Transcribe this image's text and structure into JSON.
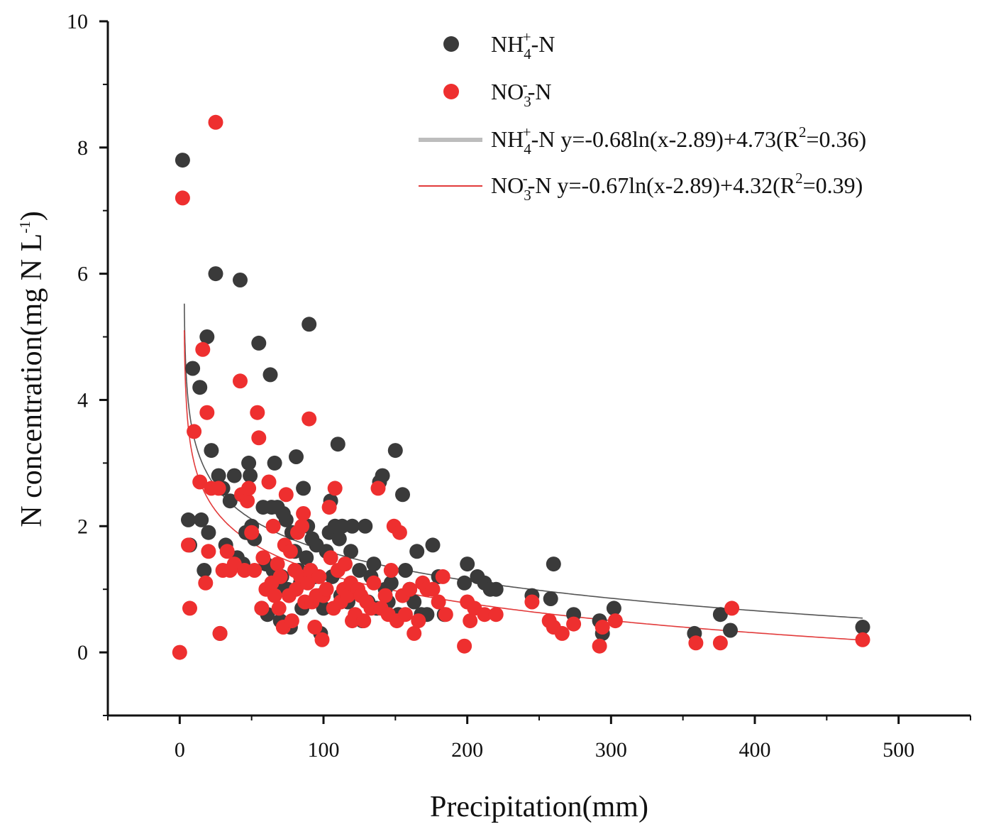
{
  "chart_data": {
    "type": "scatter",
    "title": "",
    "xlabel": "Precipitation(mm)",
    "ylabel": "N concentration(mg N L",
    "ylabel_sup": "-1",
    "ylabel_end": ")",
    "xlim": [
      -50,
      550
    ],
    "ylim": [
      -1,
      10
    ],
    "x_ticks": [
      0,
      100,
      200,
      300,
      400,
      500
    ],
    "y_ticks": [
      0,
      2,
      4,
      6,
      8,
      10
    ],
    "grid": false,
    "legend_position": "top-right",
    "colors": {
      "nh4": "#3a3a3a",
      "no3": "#ee2f2f",
      "nh4_fit": "#555555",
      "no3_fit": "#e23b3b"
    },
    "series": [
      {
        "name": "NH4+-N",
        "legend": {
          "base": "NH",
          "sub": "4",
          "sup": "+",
          "tail": "-N"
        },
        "points": [
          [
            2,
            7.8
          ],
          [
            6,
            2.1
          ],
          [
            7,
            1.7
          ],
          [
            9,
            4.5
          ],
          [
            14,
            4.2
          ],
          [
            15,
            2.1
          ],
          [
            17,
            1.3
          ],
          [
            19,
            5.0
          ],
          [
            20,
            1.9
          ],
          [
            22,
            3.2
          ],
          [
            25,
            6.0
          ],
          [
            27,
            2.8
          ],
          [
            28,
            0.3
          ],
          [
            30,
            2.6
          ],
          [
            32,
            1.7
          ],
          [
            35,
            2.4
          ],
          [
            38,
            2.8
          ],
          [
            40,
            1.5
          ],
          [
            42,
            5.9
          ],
          [
            44,
            1.4
          ],
          [
            46,
            1.9
          ],
          [
            48,
            3.0
          ],
          [
            49,
            2.8
          ],
          [
            50,
            2.0
          ],
          [
            52,
            1.8
          ],
          [
            55,
            4.9
          ],
          [
            57,
            0.7
          ],
          [
            58,
            2.3
          ],
          [
            60,
            1.4
          ],
          [
            61,
            0.6
          ],
          [
            63,
            4.4
          ],
          [
            64,
            2.3
          ],
          [
            65,
            1.3
          ],
          [
            66,
            3.0
          ],
          [
            68,
            2.3
          ],
          [
            69,
            1.1
          ],
          [
            70,
            0.5
          ],
          [
            71,
            1.2
          ],
          [
            72,
            2.2
          ],
          [
            74,
            2.1
          ],
          [
            75,
            1.0
          ],
          [
            77,
            0.4
          ],
          [
            78,
            1.9
          ],
          [
            80,
            1.6
          ],
          [
            81,
            3.1
          ],
          [
            83,
            1.3
          ],
          [
            84,
            1.1
          ],
          [
            85,
            0.7
          ],
          [
            86,
            2.6
          ],
          [
            88,
            1.5
          ],
          [
            89,
            2.0
          ],
          [
            90,
            5.2
          ],
          [
            91,
            1.3
          ],
          [
            92,
            1.8
          ],
          [
            94,
            1.2
          ],
          [
            95,
            1.7
          ],
          [
            97,
            0.9
          ],
          [
            98,
            0.3
          ],
          [
            100,
            0.7
          ],
          [
            102,
            1.6
          ],
          [
            104,
            1.9
          ],
          [
            105,
            2.4
          ],
          [
            106,
            1.2
          ],
          [
            108,
            2.0
          ],
          [
            110,
            3.3
          ],
          [
            111,
            1.8
          ],
          [
            112,
            0.9
          ],
          [
            113,
            2.0
          ],
          [
            115,
            1.4
          ],
          [
            117,
            0.8
          ],
          [
            119,
            1.6
          ],
          [
            120,
            2.0
          ],
          [
            122,
            1.0
          ],
          [
            125,
            1.3
          ],
          [
            127,
            0.5
          ],
          [
            129,
            2.0
          ],
          [
            131,
            0.8
          ],
          [
            133,
            1.2
          ],
          [
            135,
            1.4
          ],
          [
            137,
            0.7
          ],
          [
            139,
            2.7
          ],
          [
            141,
            2.8
          ],
          [
            143,
            1.0
          ],
          [
            145,
            0.8
          ],
          [
            147,
            1.1
          ],
          [
            150,
            3.2
          ],
          [
            152,
            0.6
          ],
          [
            155,
            2.5
          ],
          [
            157,
            1.3
          ],
          [
            160,
            1.0
          ],
          [
            163,
            0.8
          ],
          [
            165,
            1.6
          ],
          [
            168,
            0.6
          ],
          [
            172,
            0.6
          ],
          [
            176,
            1.7
          ],
          [
            180,
            1.2
          ],
          [
            184,
            0.6
          ],
          [
            198,
            1.1
          ],
          [
            200,
            1.4
          ],
          [
            207,
            1.2
          ],
          [
            212,
            1.1
          ],
          [
            216,
            1.0
          ],
          [
            220,
            1.0
          ],
          [
            245,
            0.9
          ],
          [
            258,
            0.85
          ],
          [
            260,
            1.4
          ],
          [
            274,
            0.6
          ],
          [
            292,
            0.5
          ],
          [
            294,
            0.3
          ],
          [
            302,
            0.7
          ],
          [
            358,
            0.3
          ],
          [
            376,
            0.6
          ],
          [
            383,
            0.35
          ],
          [
            475,
            0.4
          ]
        ]
      },
      {
        "name": "NO3--N",
        "legend": {
          "base": "NO",
          "sub": "3",
          "sup": "-",
          "tail": "-N"
        },
        "points": [
          [
            0,
            0.0
          ],
          [
            2,
            7.2
          ],
          [
            6,
            1.7
          ],
          [
            7,
            0.7
          ],
          [
            10,
            3.5
          ],
          [
            14,
            2.7
          ],
          [
            16,
            4.8
          ],
          [
            18,
            1.1
          ],
          [
            19,
            3.8
          ],
          [
            20,
            1.6
          ],
          [
            22,
            2.6
          ],
          [
            25,
            8.4
          ],
          [
            27,
            2.6
          ],
          [
            28,
            0.3
          ],
          [
            30,
            1.3
          ],
          [
            33,
            1.6
          ],
          [
            35,
            1.3
          ],
          [
            38,
            1.4
          ],
          [
            42,
            4.3
          ],
          [
            43,
            2.5
          ],
          [
            45,
            1.3
          ],
          [
            47,
            2.4
          ],
          [
            48,
            2.6
          ],
          [
            50,
            1.9
          ],
          [
            52,
            1.3
          ],
          [
            54,
            3.8
          ],
          [
            55,
            3.4
          ],
          [
            57,
            0.7
          ],
          [
            58,
            1.5
          ],
          [
            60,
            1.0
          ],
          [
            62,
            2.7
          ],
          [
            64,
            1.1
          ],
          [
            65,
            2.0
          ],
          [
            66,
            0.9
          ],
          [
            68,
            1.4
          ],
          [
            69,
            0.7
          ],
          [
            70,
            1.2
          ],
          [
            72,
            0.4
          ],
          [
            73,
            1.7
          ],
          [
            74,
            2.5
          ],
          [
            76,
            0.9
          ],
          [
            77,
            1.6
          ],
          [
            78,
            0.5
          ],
          [
            80,
            1.3
          ],
          [
            81,
            1.0
          ],
          [
            82,
            1.9
          ],
          [
            84,
            1.2
          ],
          [
            85,
            2.0
          ],
          [
            86,
            2.2
          ],
          [
            87,
            0.8
          ],
          [
            89,
            1.1
          ],
          [
            90,
            3.7
          ],
          [
            91,
            1.3
          ],
          [
            92,
            0.8
          ],
          [
            94,
            0.4
          ],
          [
            95,
            0.9
          ],
          [
            97,
            1.2
          ],
          [
            99,
            0.2
          ],
          [
            100,
            0.9
          ],
          [
            102,
            1.0
          ],
          [
            104,
            2.3
          ],
          [
            105,
            1.5
          ],
          [
            107,
            0.7
          ],
          [
            108,
            2.6
          ],
          [
            110,
            1.3
          ],
          [
            112,
            0.8
          ],
          [
            114,
            1.0
          ],
          [
            115,
            1.4
          ],
          [
            117,
            0.9
          ],
          [
            119,
            1.1
          ],
          [
            120,
            0.5
          ],
          [
            122,
            0.6
          ],
          [
            124,
            1.0
          ],
          [
            126,
            0.9
          ],
          [
            128,
            0.5
          ],
          [
            130,
            0.8
          ],
          [
            133,
            0.7
          ],
          [
            135,
            1.1
          ],
          [
            138,
            2.6
          ],
          [
            140,
            0.7
          ],
          [
            143,
            0.9
          ],
          [
            145,
            0.6
          ],
          [
            147,
            1.3
          ],
          [
            149,
            2.0
          ],
          [
            151,
            0.5
          ],
          [
            153,
            1.9
          ],
          [
            155,
            0.9
          ],
          [
            157,
            0.6
          ],
          [
            160,
            1.0
          ],
          [
            163,
            0.3
          ],
          [
            166,
            0.5
          ],
          [
            169,
            1.1
          ],
          [
            172,
            1.0
          ],
          [
            176,
            1.0
          ],
          [
            180,
            0.8
          ],
          [
            183,
            1.2
          ],
          [
            185,
            0.6
          ],
          [
            198,
            0.1
          ],
          [
            200,
            0.8
          ],
          [
            202,
            0.5
          ],
          [
            205,
            0.7
          ],
          [
            212,
            0.6
          ],
          [
            220,
            0.6
          ],
          [
            245,
            0.8
          ],
          [
            257,
            0.5
          ],
          [
            260,
            0.4
          ],
          [
            266,
            0.3
          ],
          [
            274,
            0.45
          ],
          [
            292,
            0.1
          ],
          [
            294,
            0.4
          ],
          [
            303,
            0.5
          ],
          [
            359,
            0.15
          ],
          [
            376,
            0.15
          ],
          [
            384,
            0.7
          ],
          [
            475,
            0.2
          ]
        ]
      }
    ],
    "fits": [
      {
        "name": "NH4+-N fit",
        "a": -0.68,
        "shift": 2.89,
        "b": 4.73,
        "x_range": [
          3.2,
          475
        ],
        "legend": {
          "base": "NH",
          "sub": "4",
          "sup": "+",
          "mid": "-N y=-0.68ln(x-2.89)+4.73(R",
          "r2sup": "2",
          "end": "=0.36)"
        }
      },
      {
        "name": "NO3--N fit",
        "a": -0.67,
        "shift": 2.89,
        "b": 4.32,
        "x_range": [
          3.2,
          475
        ],
        "legend": {
          "base": "NO",
          "sub": "3",
          "sup": "-",
          "mid": "-N y=-0.67ln(x-2.89)+4.32(R",
          "r2sup": "2",
          "end": "=0.39)"
        }
      }
    ]
  }
}
